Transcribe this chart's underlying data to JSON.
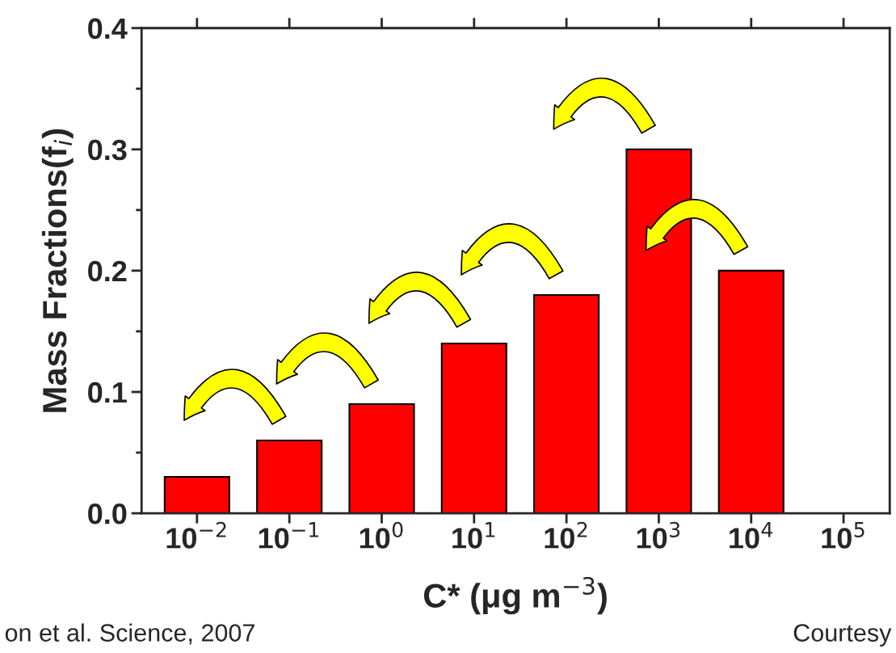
{
  "chart_data": {
    "type": "bar",
    "xlabel": "C* (μg m$^{−3}$)",
    "ylabel": "Mass Fractions(f$_{i}$)",
    "categories": [
      "10$^{−2}$",
      "10$^{−1}$",
      "10$^{0}$",
      "10$^{1}$",
      "10$^{2}$",
      "10$^{3}$",
      "10$^{4}$",
      "10$^{5}$"
    ],
    "values": [
      0.03,
      0.06,
      0.09,
      0.14,
      0.18,
      0.3,
      0.2,
      null
    ],
    "color": "#ff0000",
    "ylim": [
      0,
      0.4
    ],
    "yticks": [
      {
        "value": 0,
        "label": "0.0"
      },
      0.1,
      0.2,
      0.3,
      0.4
    ],
    "grid": false,
    "annotations": [
      "on et al. Science, 2007",
      "Courtesy"
    ]
  }
}
